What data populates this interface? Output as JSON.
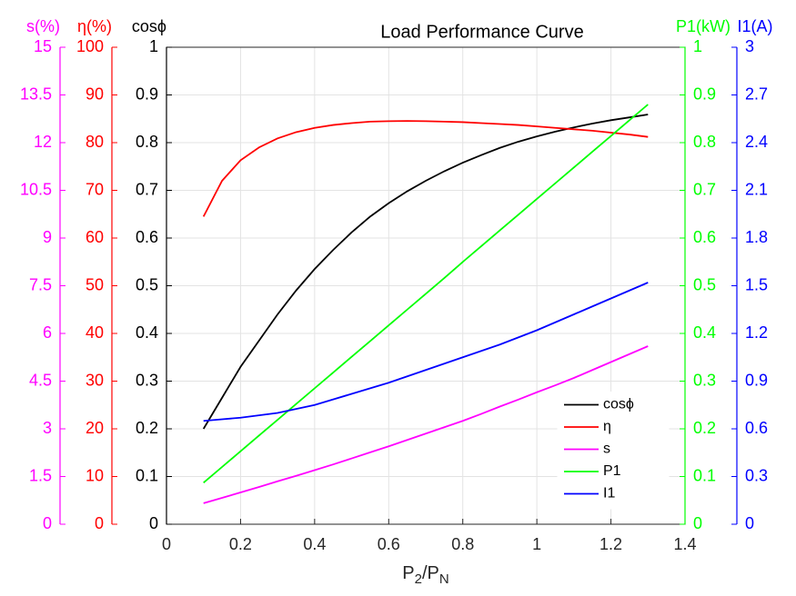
{
  "chart_data": {
    "type": "line",
    "title": "Load Performance Curve",
    "xlabel": [
      "P",
      "2",
      "/P",
      "N"
    ],
    "xlim": [
      0,
      1.4
    ],
    "xticks": [
      0,
      0.2,
      0.4,
      0.6,
      0.8,
      1,
      1.2,
      1.4
    ],
    "grid": true,
    "legend": "lower right",
    "x": [
      0.1,
      0.15,
      0.2,
      0.25,
      0.3,
      0.35,
      0.4,
      0.45,
      0.5,
      0.55,
      0.6,
      0.65,
      0.7,
      0.75,
      0.8,
      0.85,
      0.9,
      0.95,
      1,
      1.05,
      1.1,
      1.15,
      1.2,
      1.25,
      1.3
    ],
    "axes": [
      {
        "label": "cosϕ",
        "color": "#000000",
        "side": "left",
        "ylim": [
          0,
          1
        ],
        "yticks": [
          0,
          0.1,
          0.2,
          0.3,
          0.4,
          0.5,
          0.6,
          0.7,
          0.8,
          0.9,
          1
        ]
      },
      {
        "label": "η(%)",
        "color": "#ff0000",
        "side": "left",
        "ylim": [
          0,
          100
        ],
        "yticks": [
          0,
          10,
          20,
          30,
          40,
          50,
          60,
          70,
          80,
          90,
          100
        ]
      },
      {
        "label": "s(%)",
        "color": "#ff00ff",
        "side": "left",
        "ylim": [
          0,
          15
        ],
        "yticks": [
          0,
          1.5,
          3,
          4.5,
          6,
          7.5,
          9,
          10.5,
          12,
          13.5,
          15
        ]
      },
      {
        "label": "P1(kW)",
        "color": "#00ff00",
        "side": "right",
        "ylim": [
          0,
          1
        ],
        "yticks": [
          0,
          0.1,
          0.2,
          0.3,
          0.4,
          0.5,
          0.6,
          0.7,
          0.8,
          0.9,
          1
        ]
      },
      {
        "label": "I1(A)",
        "color": "#0000ff",
        "side": "right",
        "ylim": [
          0,
          3
        ],
        "yticks": [
          0,
          0.3,
          0.6,
          0.9,
          1.2,
          1.5,
          1.8,
          2.1,
          2.4,
          2.7,
          3
        ]
      }
    ],
    "series": [
      {
        "name": "cosϕ",
        "color": "#000000",
        "axis": 0,
        "values": [
          0.2,
          0.265,
          0.33,
          0.385,
          0.44,
          0.49,
          0.535,
          0.575,
          0.612,
          0.645,
          0.673,
          0.698,
          0.72,
          0.74,
          0.758,
          0.774,
          0.789,
          0.802,
          0.813,
          0.823,
          0.832,
          0.84,
          0.847,
          0.853,
          0.859
        ]
      },
      {
        "name": "η",
        "color": "#ff0000",
        "axis": 1,
        "values": [
          64.5,
          72,
          76.3,
          79,
          80.9,
          82.2,
          83.1,
          83.7,
          84.1,
          84.4,
          84.5,
          84.55,
          84.5,
          84.4,
          84.3,
          84.1,
          83.9,
          83.7,
          83.4,
          83.1,
          82.8,
          82.5,
          82.1,
          81.7,
          81.2
        ]
      },
      {
        "name": "s",
        "color": "#ff00ff",
        "axis": 2,
        "values": [
          0.66,
          0.83,
          1.0,
          1.17,
          1.35,
          1.52,
          1.7,
          1.88,
          2.07,
          2.26,
          2.45,
          2.65,
          2.85,
          3.05,
          3.25,
          3.47,
          3.7,
          3.92,
          4.15,
          4.37,
          4.6,
          4.85,
          5.1,
          5.35,
          5.6
        ]
      },
      {
        "name": "P1",
        "color": "#00ff00",
        "axis": 3,
        "values": [
          0.087,
          0.12,
          0.153,
          0.186,
          0.219,
          0.252,
          0.285,
          0.318,
          0.351,
          0.384,
          0.417,
          0.45,
          0.483,
          0.516,
          0.55,
          0.583,
          0.616,
          0.649,
          0.682,
          0.715,
          0.748,
          0.781,
          0.814,
          0.847,
          0.88
        ]
      },
      {
        "name": "I1",
        "color": "#0000ff",
        "axis": 4,
        "values": [
          0.65,
          0.66,
          0.67,
          0.685,
          0.7,
          0.725,
          0.75,
          0.785,
          0.82,
          0.855,
          0.89,
          0.93,
          0.97,
          1.01,
          1.05,
          1.09,
          1.13,
          1.175,
          1.22,
          1.27,
          1.32,
          1.37,
          1.42,
          1.47,
          1.52
        ]
      }
    ]
  }
}
